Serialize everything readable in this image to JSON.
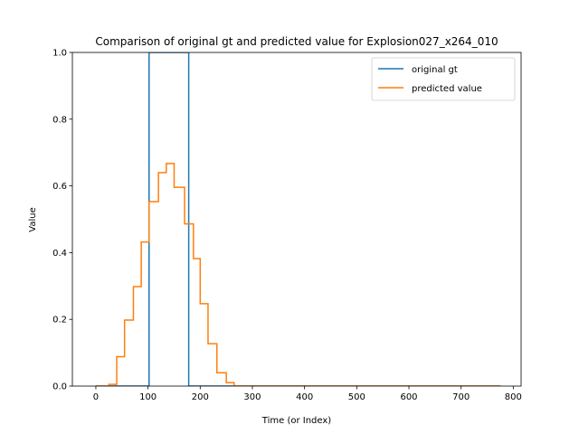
{
  "chart_data": {
    "type": "line",
    "title": "Comparison of original gt and predicted value for Explosion027_x264_010",
    "xlabel": "Time (or Index)",
    "ylabel": "Value",
    "xlim": [
      -45,
      815
    ],
    "ylim": [
      0,
      1.0
    ],
    "xticks": [
      0,
      100,
      200,
      300,
      400,
      500,
      600,
      700,
      800
    ],
    "yticks": [
      0.0,
      0.2,
      0.4,
      0.6,
      0.8,
      1.0
    ],
    "xtick_labels": [
      "0",
      "100",
      "200",
      "300",
      "400",
      "500",
      "600",
      "700",
      "800"
    ],
    "ytick_labels": [
      "0.0",
      "0.2",
      "0.4",
      "0.6",
      "0.8",
      "1.0"
    ],
    "grid": false,
    "legend_position": "top-right",
    "series": [
      {
        "name": "original gt",
        "color": "#1f77b4",
        "x": [
          0,
          102,
          102,
          178,
          178,
          776
        ],
        "y": [
          0,
          0,
          1,
          1,
          0,
          0
        ]
      },
      {
        "name": "predicted value",
        "color": "#ff7f0e",
        "x": [
          0,
          25,
          25,
          40,
          40,
          55,
          55,
          72,
          72,
          87,
          87,
          102,
          102,
          120,
          120,
          135,
          135,
          150,
          150,
          170,
          170,
          187,
          187,
          200,
          200,
          215,
          215,
          232,
          232,
          250,
          250,
          265,
          265,
          776
        ],
        "y": [
          0,
          0,
          0.005,
          0.005,
          0.088,
          0.088,
          0.198,
          0.198,
          0.298,
          0.298,
          0.432,
          0.432,
          0.553,
          0.553,
          0.64,
          0.64,
          0.667,
          0.667,
          0.596,
          0.596,
          0.486,
          0.486,
          0.382,
          0.382,
          0.247,
          0.247,
          0.127,
          0.127,
          0.04,
          0.04,
          0.01,
          0.01,
          0,
          0
        ]
      }
    ]
  }
}
